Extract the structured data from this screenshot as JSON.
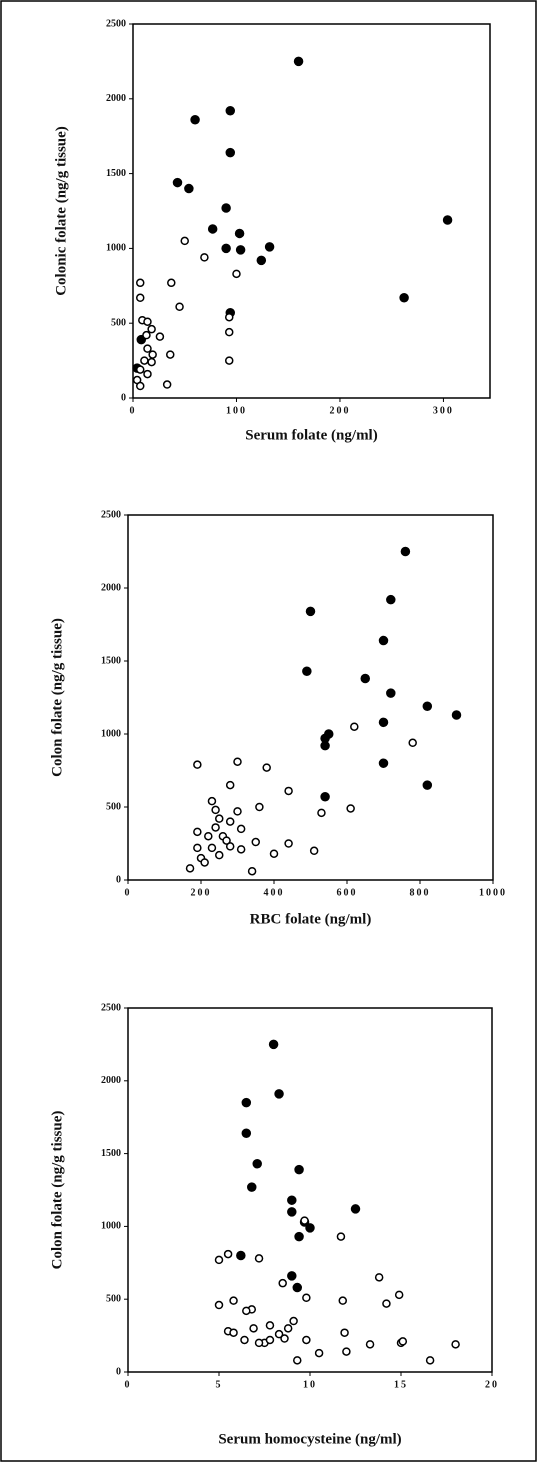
{
  "chart_data": [
    {
      "type": "scatter",
      "x_label": "Serum folate (ng/ml)",
      "y_label": "Colonic folate (ng/g tissue)",
      "xlim": [
        0,
        345
      ],
      "ylim": [
        0,
        2500
      ],
      "xticks": [
        0,
        100,
        200,
        300
      ],
      "yticks": [
        0,
        500,
        1000,
        1500,
        2000,
        2500
      ],
      "series": [
        {
          "color": "#000000",
          "marker": "filled",
          "x": [
            160,
            60,
            94,
            94,
            43,
            54,
            90,
            77,
            304,
            103,
            90,
            104,
            132,
            124,
            262,
            94,
            8,
            4
          ],
          "y": [
            2250,
            1860,
            1920,
            1640,
            1440,
            1400,
            1270,
            1130,
            1190,
            1100,
            1000,
            990,
            1010,
            920,
            670,
            570,
            390,
            200
          ]
        },
        {
          "color": "#000000",
          "marker": "open",
          "x": [
            50,
            69,
            100,
            7,
            37,
            45,
            93,
            93,
            93,
            36,
            33,
            7,
            9,
            14,
            18,
            26,
            13,
            14,
            19,
            11,
            18,
            7,
            14,
            4,
            7
          ],
          "y": [
            1050,
            940,
            830,
            770,
            770,
            610,
            540,
            440,
            250,
            290,
            90,
            670,
            520,
            510,
            460,
            410,
            420,
            330,
            290,
            250,
            240,
            190,
            160,
            120,
            80
          ]
        }
      ]
    },
    {
      "type": "scatter",
      "x_label": "RBC folate (ng/ml)",
      "y_label": "Colon folate (ng/g tissue)",
      "xlim": [
        0,
        1000
      ],
      "ylim": [
        0,
        2500
      ],
      "xticks": [
        0,
        200,
        400,
        600,
        800,
        1000
      ],
      "yticks": [
        0,
        500,
        1000,
        1500,
        2000,
        2500
      ],
      "series": [
        {
          "color": "#000000",
          "marker": "filled",
          "x": [
            760,
            720,
            500,
            700,
            490,
            650,
            720,
            820,
            900,
            700,
            550,
            540,
            540,
            700,
            820,
            540
          ],
          "y": [
            2250,
            1920,
            1840,
            1640,
            1430,
            1380,
            1280,
            1190,
            1130,
            1080,
            1000,
            970,
            920,
            800,
            650,
            570
          ]
        },
        {
          "color": "#000000",
          "marker": "open",
          "x": [
            780,
            620,
            300,
            380,
            190,
            280,
            440,
            610,
            530,
            360,
            230,
            240,
            300,
            250,
            280,
            310,
            190,
            220,
            260,
            350,
            440,
            230,
            280,
            190,
            310,
            510,
            250,
            400,
            200,
            210,
            170,
            340,
            270,
            240
          ],
          "y": [
            940,
            1050,
            810,
            770,
            790,
            650,
            610,
            490,
            460,
            500,
            540,
            480,
            470,
            420,
            400,
            350,
            330,
            300,
            300,
            260,
            250,
            220,
            230,
            220,
            210,
            200,
            170,
            180,
            150,
            120,
            80,
            60,
            270,
            360
          ]
        }
      ]
    },
    {
      "type": "scatter",
      "x_label": "Serum homocysteine (ng/ml)",
      "y_label": "Colon folate (ng/g tissue)",
      "xlim": [
        0,
        20
      ],
      "ylim": [
        0,
        2500
      ],
      "xticks": [
        0,
        5,
        10,
        15,
        20
      ],
      "yticks": [
        0,
        500,
        1000,
        1500,
        2000,
        2500
      ],
      "series": [
        {
          "color": "#000000",
          "marker": "filled",
          "x": [
            8,
            8.3,
            6.5,
            6.5,
            7.1,
            9.4,
            6.8,
            9,
            12.5,
            9,
            9.7,
            10,
            9.4,
            6.2,
            9,
            9.3
          ],
          "y": [
            2250,
            1910,
            1850,
            1640,
            1430,
            1390,
            1270,
            1180,
            1120,
            1100,
            1030,
            990,
            930,
            800,
            660,
            580
          ]
        },
        {
          "color": "#000000",
          "marker": "open",
          "x": [
            9.7,
            11.7,
            5.5,
            5,
            7.2,
            8.5,
            13.8,
            9.8,
            6.8,
            6.5,
            5,
            5.8,
            11.8,
            14.9,
            14.2,
            9.1,
            8.8,
            7.8,
            6.9,
            5.5,
            5.8,
            8.3,
            7.5,
            7.8,
            6.4,
            8.6,
            9.8,
            11.9,
            13.3,
            15,
            15.1,
            18,
            12,
            10.5,
            9.3,
            16.6,
            7.2
          ],
          "y": [
            1040,
            930,
            810,
            770,
            780,
            610,
            650,
            510,
            430,
            420,
            460,
            490,
            490,
            530,
            470,
            350,
            300,
            320,
            300,
            280,
            270,
            260,
            200,
            220,
            220,
            230,
            220,
            270,
            190,
            200,
            210,
            190,
            140,
            130,
            80,
            80,
            200
          ]
        }
      ]
    }
  ]
}
